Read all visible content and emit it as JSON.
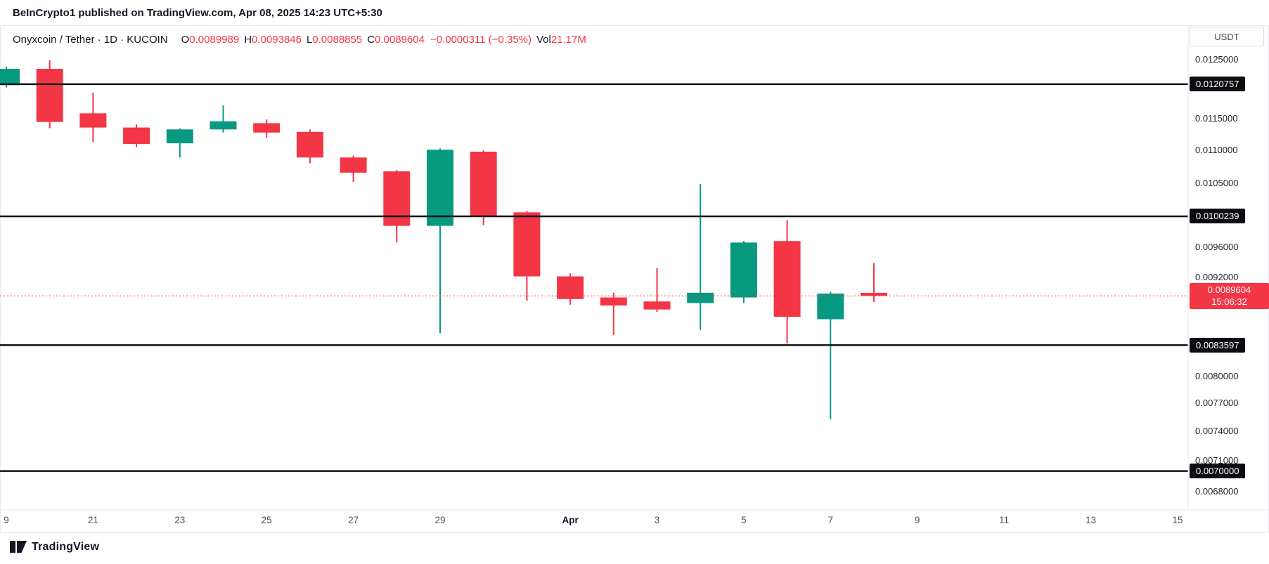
{
  "header": {
    "publisher_line": "BeInCrypto1 published on TradingView.com, Apr 08, 2025 14:23 UTC+5:30"
  },
  "legend": {
    "symbol": "Onyxcoin / Tether · 1D · KUCOIN",
    "o_label": "O",
    "o": "0.0089989",
    "h_label": "H",
    "h": "0.0093846",
    "l_label": "L",
    "l": "0.0088855",
    "c_label": "C",
    "c": "0.0089604",
    "change": "−0.0000311 (−0.35%)",
    "vol_label": "Vol",
    "vol": "21.17M"
  },
  "price_axis": {
    "currency_label": "USDT",
    "ticks": [
      {
        "price": 0.0125,
        "label": "0.0125000"
      },
      {
        "price": 0.0115,
        "label": "0.0115000"
      },
      {
        "price": 0.011,
        "label": "0.0110000"
      },
      {
        "price": 0.0105,
        "label": "0.0105000"
      },
      {
        "price": 0.0096,
        "label": "0.0096000"
      },
      {
        "price": 0.0092,
        "label": "0.0092000"
      },
      {
        "price": 0.008,
        "label": "0.0080000"
      },
      {
        "price": 0.0077,
        "label": "0.0077000"
      },
      {
        "price": 0.0074,
        "label": "0.0074000"
      },
      {
        "price": 0.0071,
        "label": "0.0071000"
      },
      {
        "price": 0.0068,
        "label": "0.0068000"
      }
    ],
    "level_badges": [
      {
        "price": 0.0120757,
        "label": "0.0120757"
      },
      {
        "price": 0.0100239,
        "label": "0.0100239"
      },
      {
        "price": 0.0083597,
        "label": "0.0083597"
      },
      {
        "price": 0.007,
        "label": "0.0070000"
      }
    ],
    "current": {
      "price": 0.0089604,
      "label": "0.0089604",
      "countdown": "15:06:32"
    }
  },
  "levels": [
    0.0120757,
    0.0100239,
    0.0083597,
    0.007
  ],
  "time_axis": {
    "labels": [
      {
        "text": "9",
        "day": 0
      },
      {
        "text": "21",
        "day": 2
      },
      {
        "text": "23",
        "day": 4
      },
      {
        "text": "25",
        "day": 6
      },
      {
        "text": "27",
        "day": 8
      },
      {
        "text": "29",
        "day": 10
      },
      {
        "text": "Apr",
        "day": 13,
        "bold": true
      },
      {
        "text": "3",
        "day": 15
      },
      {
        "text": "5",
        "day": 17
      },
      {
        "text": "7",
        "day": 19
      },
      {
        "text": "9",
        "day": 21
      },
      {
        "text": "11",
        "day": 23
      },
      {
        "text": "13",
        "day": 25
      },
      {
        "text": "15",
        "day": 27
      }
    ]
  },
  "chart_data": {
    "type": "candlestick",
    "title": "Onyxcoin / Tether · 1D · KUCOIN",
    "scale": "log",
    "ylim": [
      0.0068,
      0.0125
    ],
    "up_color": "#089981",
    "down_color": "#f23645",
    "horizontal_levels": [
      0.0120757,
      0.0100239,
      0.0083597,
      0.007
    ],
    "current_price": 0.0089604,
    "volume_last": "21.17M",
    "candles": [
      {
        "date": "Mar 19",
        "o": 0.01206,
        "h": 0.01238,
        "l": 0.01202,
        "c": 0.01234
      },
      {
        "date": "Mar 20",
        "o": 0.01234,
        "h": 0.01249,
        "l": 0.01135,
        "c": 0.01145
      },
      {
        "date": "Mar 21",
        "o": 0.01159,
        "h": 0.01193,
        "l": 0.01113,
        "c": 0.01136
      },
      {
        "date": "Mar 22",
        "o": 0.01136,
        "h": 0.01141,
        "l": 0.01105,
        "c": 0.0111
      },
      {
        "date": "Mar 23",
        "o": 0.01111,
        "h": 0.01135,
        "l": 0.01089,
        "c": 0.01133
      },
      {
        "date": "Mar 24",
        "o": 0.01133,
        "h": 0.01172,
        "l": 0.01128,
        "c": 0.01146
      },
      {
        "date": "Mar 25",
        "o": 0.01143,
        "h": 0.01149,
        "l": 0.0112,
        "c": 0.01128
      },
      {
        "date": "Mar 26",
        "o": 0.01129,
        "h": 0.01133,
        "l": 0.0108,
        "c": 0.01089
      },
      {
        "date": "Mar 27",
        "o": 0.01089,
        "h": 0.01092,
        "l": 0.01052,
        "c": 0.01066
      },
      {
        "date": "Mar 28",
        "o": 0.01068,
        "h": 0.0107,
        "l": 0.00966,
        "c": 0.00989
      },
      {
        "date": "Mar 29",
        "o": 0.00989,
        "h": 0.01103,
        "l": 0.0085,
        "c": 0.01101
      },
      {
        "date": "Mar 30",
        "o": 0.01098,
        "h": 0.011,
        "l": 0.0099,
        "c": 0.01002
      },
      {
        "date": "Mar 31",
        "o": 0.01008,
        "h": 0.0101,
        "l": 0.0089,
        "c": 0.00921
      },
      {
        "date": "Apr 1",
        "o": 0.00921,
        "h": 0.00925,
        "l": 0.00885,
        "c": 0.00892
      },
      {
        "date": "Apr 2",
        "o": 0.00894,
        "h": 0.009,
        "l": 0.00848,
        "c": 0.00884
      },
      {
        "date": "Apr 3",
        "o": 0.00889,
        "h": 0.00932,
        "l": 0.00876,
        "c": 0.00879
      },
      {
        "date": "Apr 4",
        "o": 0.00887,
        "h": 0.01049,
        "l": 0.00854,
        "c": 0.009
      },
      {
        "date": "Apr 5",
        "o": 0.00894,
        "h": 0.00968,
        "l": 0.00887,
        "c": 0.00966
      },
      {
        "date": "Apr 6",
        "o": 0.00968,
        "h": 0.00997,
        "l": 0.00838,
        "c": 0.0087
      },
      {
        "date": "Apr 7",
        "o": 0.00867,
        "h": 0.00901,
        "l": 0.00753,
        "c": 0.00899
      },
      {
        "date": "Apr 8",
        "o": 0.0089989,
        "h": 0.0093846,
        "l": 0.0088855,
        "c": 0.0089604
      }
    ]
  },
  "footer": {
    "brand": "TradingView"
  },
  "colors": {
    "up": "#089981",
    "down": "#f23645",
    "level_line": "#101114",
    "axis_border": "#e7e9ec",
    "badge_bg": "#0c0d10",
    "current_badge_bg": "#f23645"
  }
}
